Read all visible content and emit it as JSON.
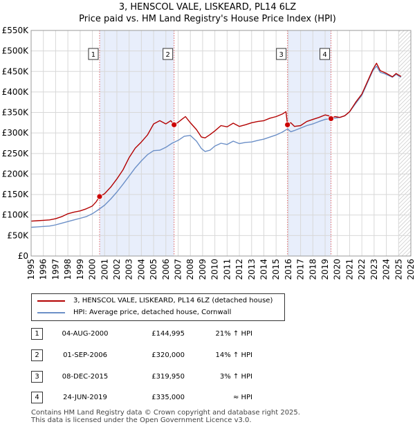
{
  "title_line1": "3, HENSCOL VALE, LISKEARD, PL14 6LZ",
  "title_line2": "Price paid vs. HM Land Registry's House Price Index (HPI)",
  "colors": {
    "red": "#b30000",
    "blue": "#6b8fc7",
    "band": "#e8eefb",
    "grid": "#d8d8d8"
  },
  "chart_data": {
    "type": "line",
    "xlim": [
      1995,
      2026
    ],
    "ylim": [
      0,
      550000
    ],
    "x_ticks": [
      "1995",
      "1996",
      "1997",
      "1998",
      "1999",
      "2000",
      "2001",
      "2002",
      "2003",
      "2004",
      "2005",
      "2006",
      "2007",
      "2008",
      "2009",
      "2010",
      "2011",
      "2012",
      "2013",
      "2014",
      "2015",
      "2016",
      "2017",
      "2018",
      "2019",
      "2020",
      "2021",
      "2022",
      "2023",
      "2024",
      "2025",
      "2026"
    ],
    "y_ticks": [
      "£0",
      "£50K",
      "£100K",
      "£150K",
      "£200K",
      "£250K",
      "£300K",
      "£350K",
      "£400K",
      "£450K",
      "£500K",
      "£550K"
    ],
    "shaded_ranges": [
      [
        2000.59,
        2006.67
      ],
      [
        2015.93,
        2019.48
      ]
    ],
    "future_hatch_from": 2025.0,
    "series": [
      {
        "name": "3, HENSCOL VALE, LISKEARD, PL14 6LZ (detached house)",
        "color": "#b30000",
        "x": [
          1995.0,
          1995.5,
          1996.0,
          1996.5,
          1997.0,
          1997.5,
          1998.0,
          1998.5,
          1999.0,
          1999.5,
          2000.0,
          2000.3,
          2000.59,
          2001.0,
          2001.5,
          2002.0,
          2002.5,
          2003.0,
          2003.5,
          2004.0,
          2004.5,
          2005.0,
          2005.5,
          2006.0,
          2006.4,
          2006.67,
          2007.0,
          2007.3,
          2007.6,
          2008.0,
          2008.5,
          2008.9,
          2009.2,
          2009.6,
          2010.0,
          2010.5,
          2011.0,
          2011.5,
          2012.0,
          2012.5,
          2013.0,
          2013.5,
          2014.0,
          2014.5,
          2015.0,
          2015.5,
          2015.8,
          2015.93,
          2016.2,
          2016.5,
          2017.0,
          2017.5,
          2018.0,
          2018.5,
          2019.0,
          2019.3,
          2019.48,
          2019.8,
          2020.2,
          2020.6,
          2021.0,
          2021.5,
          2022.0,
          2022.3,
          2022.6,
          2022.9,
          2023.2,
          2023.5,
          2023.9,
          2024.2,
          2024.5,
          2024.8,
          2025.0,
          2025.2
        ],
        "values": [
          85000,
          86000,
          87000,
          88000,
          91000,
          96000,
          103000,
          107000,
          110000,
          115000,
          122000,
          132000,
          144995,
          152000,
          168000,
          188000,
          210000,
          240000,
          263000,
          278000,
          295000,
          322000,
          330000,
          322000,
          330000,
          320000,
          326000,
          333000,
          340000,
          325000,
          308000,
          290000,
          288000,
          296000,
          305000,
          318000,
          315000,
          324000,
          316000,
          320000,
          325000,
          328000,
          330000,
          336000,
          340000,
          346000,
          352000,
          319950,
          325000,
          316000,
          318000,
          328000,
          333000,
          338000,
          344000,
          342000,
          335000,
          340000,
          338000,
          342000,
          352000,
          375000,
          395000,
          415000,
          435000,
          455000,
          470000,
          452000,
          447000,
          442000,
          437000,
          445000,
          441000,
          438000
        ]
      },
      {
        "name": "HPI: Average price, detached house, Cornwall",
        "color": "#6b8fc7",
        "x": [
          1995.0,
          1995.5,
          1996.0,
          1996.5,
          1997.0,
          1997.5,
          1998.0,
          1998.5,
          1999.0,
          1999.5,
          2000.0,
          2000.5,
          2001.0,
          2001.5,
          2002.0,
          2002.5,
          2003.0,
          2003.5,
          2004.0,
          2004.5,
          2005.0,
          2005.5,
          2006.0,
          2006.5,
          2007.0,
          2007.5,
          2008.0,
          2008.5,
          2008.9,
          2009.2,
          2009.6,
          2010.0,
          2010.5,
          2011.0,
          2011.5,
          2012.0,
          2012.5,
          2013.0,
          2013.5,
          2014.0,
          2014.5,
          2015.0,
          2015.5,
          2015.93,
          2016.2,
          2016.5,
          2017.0,
          2017.5,
          2018.0,
          2018.5,
          2019.0,
          2019.48,
          2019.8,
          2020.2,
          2020.6,
          2021.0,
          2021.5,
          2022.0,
          2022.3,
          2022.6,
          2022.9,
          2023.2,
          2023.5,
          2023.9,
          2024.2,
          2024.5,
          2024.8,
          2025.0,
          2025.2
        ],
        "values": [
          70000,
          71000,
          72000,
          73000,
          76000,
          80000,
          84000,
          88000,
          92000,
          96000,
          103000,
          113000,
          124000,
          139000,
          156000,
          175000,
          195000,
          215000,
          232000,
          247000,
          257000,
          258000,
          265000,
          275000,
          282000,
          292000,
          294000,
          280000,
          262000,
          255000,
          258000,
          268000,
          275000,
          272000,
          280000,
          274000,
          277000,
          278000,
          282000,
          285000,
          290000,
          295000,
          302000,
          310000,
          303000,
          306000,
          312000,
          318000,
          322000,
          328000,
          333000,
          335000,
          336000,
          338000,
          342000,
          352000,
          372000,
          392000,
          412000,
          432000,
          452000,
          463000,
          448000,
          444000,
          440000,
          436000,
          443000,
          439000,
          436000
        ]
      }
    ],
    "sales": [
      {
        "label": "1",
        "x": 2000.59,
        "value": 144995
      },
      {
        "label": "2",
        "x": 2006.67,
        "value": 320000
      },
      {
        "label": "3",
        "x": 2015.93,
        "value": 319950
      },
      {
        "label": "4",
        "x": 2019.48,
        "value": 335000
      }
    ]
  },
  "legend": {
    "property_label": "3, HENSCOL VALE, LISKEARD, PL14 6LZ (detached house)",
    "hpi_label": "HPI: Average price, detached house, Cornwall"
  },
  "table": [
    {
      "num": "1",
      "date": "04-AUG-2000",
      "price": "£144,995",
      "diff": "21% ↑ HPI"
    },
    {
      "num": "2",
      "date": "01-SEP-2006",
      "price": "£320,000",
      "diff": "14% ↑ HPI"
    },
    {
      "num": "3",
      "date": "08-DEC-2015",
      "price": "£319,950",
      "diff": "3% ↑ HPI"
    },
    {
      "num": "4",
      "date": "24-JUN-2019",
      "price": "£335,000",
      "diff": "≈ HPI"
    }
  ],
  "footer_line1": "Contains HM Land Registry data © Crown copyright and database right 2025.",
  "footer_line2": "This data is licensed under the Open Government Licence v3.0."
}
